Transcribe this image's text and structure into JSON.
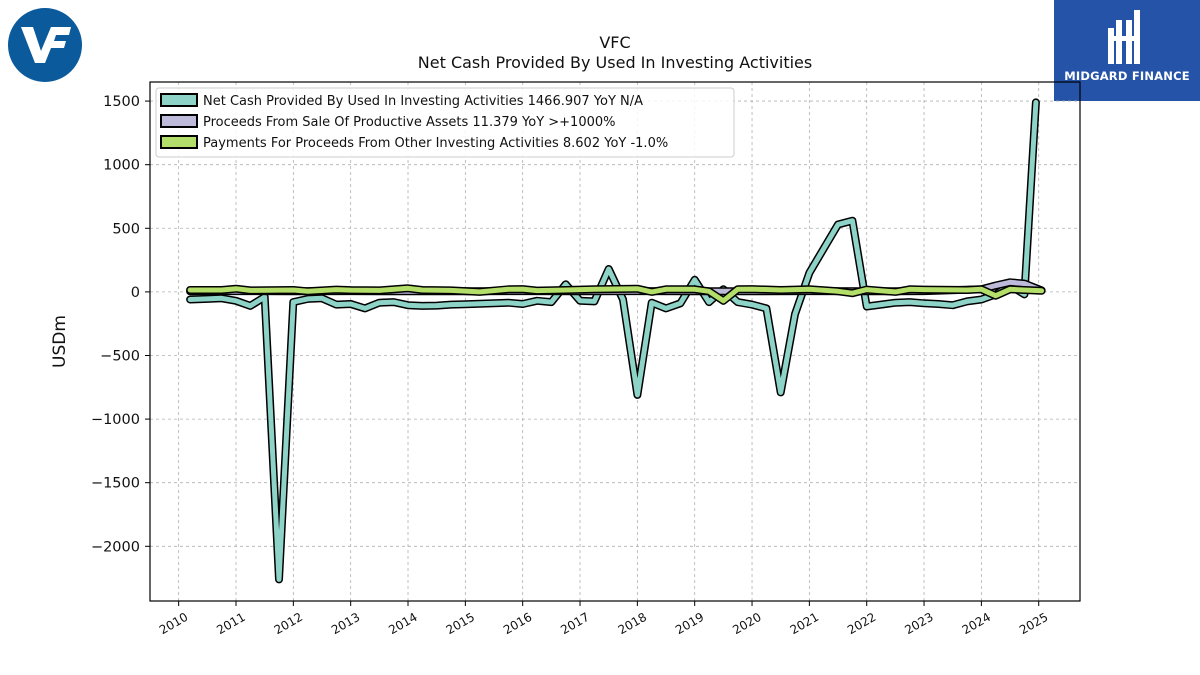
{
  "header": {
    "ticker": "VFC",
    "title": "Net Cash Provided By Used In Investing Activities"
  },
  "branding": {
    "left_logo_text": "VF",
    "right_logo_name": "MIDGARD FINANCE",
    "left_logo_color": "#0a5a9c",
    "right_logo_color": "#2553a8"
  },
  "chart_data": {
    "type": "line",
    "title": "VFC\nNet Cash Provided By Used In Investing Activities",
    "xlabel": "",
    "ylabel": "USDm",
    "xlim": [
      2009.5,
      2025.72
    ],
    "ylim": [
      -2430,
      1650
    ],
    "grid": true,
    "legend_position": "top-left",
    "x_ticks": [
      "2010",
      "2011",
      "2012",
      "2013",
      "2014",
      "2015",
      "2016",
      "2017",
      "2018",
      "2019",
      "2020",
      "2021",
      "2022",
      "2023",
      "2024",
      "2025"
    ],
    "y_ticks": [
      "1500",
      "1000",
      "500",
      "0",
      "−500",
      "−1000",
      "−1500",
      "−2000"
    ],
    "y_tick_values": [
      1500,
      1000,
      500,
      0,
      -500,
      -1000,
      -1500,
      -2000
    ],
    "series": [
      {
        "name": "Net Cash Provided By Used In Investing Activities",
        "legend": "Net Cash Provided By Used In Investing Activities  1466.907 YoY N/A",
        "color": "#8dd3c7",
        "points": [
          [
            2010.2,
            -60
          ],
          [
            2010.5,
            -55
          ],
          [
            2010.75,
            -50
          ],
          [
            2011.0,
            -70
          ],
          [
            2011.25,
            -110
          ],
          [
            2011.5,
            -40
          ],
          [
            2011.75,
            -2260
          ],
          [
            2012.0,
            -80
          ],
          [
            2012.25,
            -55
          ],
          [
            2012.5,
            -50
          ],
          [
            2012.75,
            -100
          ],
          [
            2013.0,
            -95
          ],
          [
            2013.25,
            -130
          ],
          [
            2013.5,
            -85
          ],
          [
            2013.75,
            -80
          ],
          [
            2014.0,
            -105
          ],
          [
            2014.25,
            -110
          ],
          [
            2014.5,
            -108
          ],
          [
            2014.75,
            -100
          ],
          [
            2015.0,
            -97
          ],
          [
            2015.25,
            -94
          ],
          [
            2015.5,
            -90
          ],
          [
            2015.75,
            -85
          ],
          [
            2016.0,
            -95
          ],
          [
            2016.25,
            -70
          ],
          [
            2016.5,
            -80
          ],
          [
            2016.75,
            60
          ],
          [
            2017.0,
            -70
          ],
          [
            2017.25,
            -75
          ],
          [
            2017.5,
            180
          ],
          [
            2017.75,
            -60
          ],
          [
            2018.0,
            -810
          ],
          [
            2018.25,
            -85
          ],
          [
            2018.5,
            -130
          ],
          [
            2018.75,
            -90
          ],
          [
            2019.0,
            95
          ],
          [
            2019.25,
            -80
          ],
          [
            2019.5,
            20
          ],
          [
            2019.75,
            -80
          ],
          [
            2020.0,
            -100
          ],
          [
            2020.25,
            -130
          ],
          [
            2020.5,
            -790
          ],
          [
            2020.75,
            -175
          ],
          [
            2021.0,
            150
          ],
          [
            2021.25,
            340
          ],
          [
            2021.5,
            530
          ],
          [
            2021.75,
            560
          ],
          [
            2022.0,
            -115
          ],
          [
            2022.25,
            -100
          ],
          [
            2022.5,
            -85
          ],
          [
            2022.75,
            -80
          ],
          [
            2023.0,
            -90
          ],
          [
            2023.25,
            -95
          ],
          [
            2023.5,
            -105
          ],
          [
            2023.75,
            -75
          ],
          [
            2024.0,
            -60
          ],
          [
            2024.25,
            -20
          ],
          [
            2024.5,
            50
          ],
          [
            2024.75,
            -20
          ],
          [
            2024.95,
            1490
          ]
        ]
      },
      {
        "name": "Proceeds From Sale Of Productive Assets",
        "legend": "Proceeds From Sale Of Productive Assets  11.379 YoY >+1000%",
        "color": "#bebada",
        "points": [
          [
            2010.2,
            5
          ],
          [
            2011.0,
            6
          ],
          [
            2012.0,
            5
          ],
          [
            2013.0,
            6
          ],
          [
            2014.0,
            5
          ],
          [
            2015.0,
            5
          ],
          [
            2016.0,
            6
          ],
          [
            2017.0,
            5
          ],
          [
            2018.0,
            6
          ],
          [
            2019.0,
            5
          ],
          [
            2020.0,
            5
          ],
          [
            2021.0,
            6
          ],
          [
            2022.0,
            5
          ],
          [
            2023.0,
            6
          ],
          [
            2024.0,
            20
          ],
          [
            2024.25,
            50
          ],
          [
            2024.5,
            75
          ],
          [
            2024.75,
            65
          ],
          [
            2025.05,
            11.379
          ]
        ]
      },
      {
        "name": "Payments For Proceeds From Other Investing Activities",
        "legend": "Payments For Proceeds From Other Investing Activities  8.602 YoY -1.0%",
        "color": "#b3de69",
        "points": [
          [
            2010.2,
            15
          ],
          [
            2010.75,
            15
          ],
          [
            2011.0,
            25
          ],
          [
            2011.25,
            12
          ],
          [
            2012.0,
            15
          ],
          [
            2012.25,
            5
          ],
          [
            2012.75,
            18
          ],
          [
            2013.0,
            14
          ],
          [
            2013.5,
            12
          ],
          [
            2014.0,
            28
          ],
          [
            2014.25,
            15
          ],
          [
            2014.75,
            12
          ],
          [
            2015.25,
            0
          ],
          [
            2015.75,
            20
          ],
          [
            2016.0,
            22
          ],
          [
            2016.25,
            10
          ],
          [
            2016.75,
            15
          ],
          [
            2017.25,
            20
          ],
          [
            2018.0,
            25
          ],
          [
            2018.25,
            0
          ],
          [
            2018.5,
            20
          ],
          [
            2019.0,
            20
          ],
          [
            2019.25,
            5
          ],
          [
            2019.5,
            -70
          ],
          [
            2019.75,
            20
          ],
          [
            2020.0,
            22
          ],
          [
            2020.5,
            15
          ],
          [
            2021.0,
            20
          ],
          [
            2021.5,
            5
          ],
          [
            2021.75,
            -10
          ],
          [
            2022.0,
            18
          ],
          [
            2022.5,
            0
          ],
          [
            2022.75,
            20
          ],
          [
            2023.0,
            18
          ],
          [
            2023.75,
            15
          ],
          [
            2024.0,
            20
          ],
          [
            2024.25,
            -30
          ],
          [
            2024.5,
            20
          ],
          [
            2025.05,
            8.602
          ]
        ]
      }
    ]
  }
}
